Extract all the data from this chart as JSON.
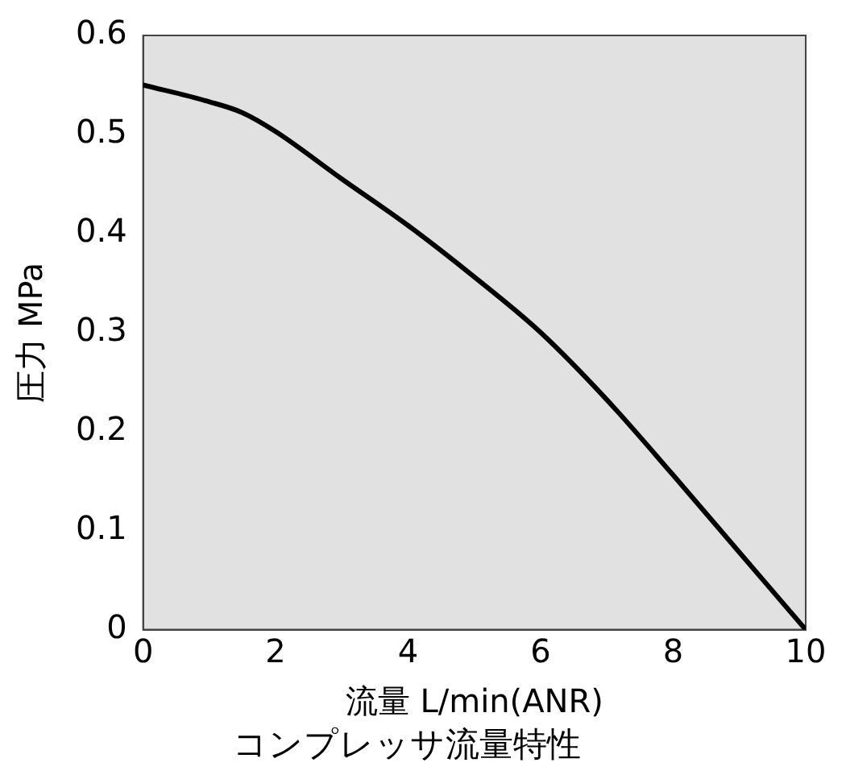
{
  "chart_data": {
    "type": "line",
    "title": "コンプレッサ流量特性",
    "xlabel": "流量 L/min(ANR)",
    "ylabel": "圧力 MPa",
    "x": [
      0,
      1,
      1.5,
      2,
      3,
      4,
      5,
      6,
      7,
      8,
      9,
      10
    ],
    "series": [
      {
        "color": "#000000",
        "values": [
          0.55,
          0.533,
          0.522,
          0.503,
          0.455,
          0.408,
          0.356,
          0.3,
          0.232,
          0.156,
          0.078,
          0
        ]
      }
    ],
    "xlim": [
      0,
      10
    ],
    "xticks": [
      0,
      2,
      4,
      6,
      8,
      10
    ],
    "ylim": [
      0,
      0.6
    ],
    "yticks": [
      0,
      0.1,
      0.2,
      0.3,
      0.4,
      0.5,
      0.6
    ],
    "grid": false,
    "legend": false,
    "marker": "none",
    "line_style": "solid"
  }
}
